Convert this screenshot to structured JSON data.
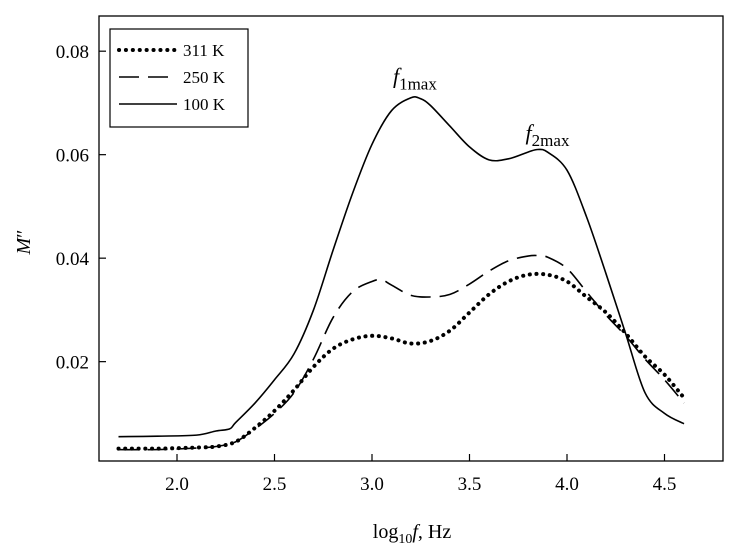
{
  "chart_data": {
    "type": "line",
    "title": "",
    "xlabel": {
      "base": "log",
      "sub": "10",
      "var": "f",
      "rest": ", Hz"
    },
    "ylabel": {
      "main": "M",
      "prime": "″"
    },
    "xlim": [
      1.6,
      4.8
    ],
    "ylim": [
      0.0008,
      0.0868
    ],
    "x_ticks": [
      2.0,
      2.5,
      3.0,
      3.5,
      4.0,
      4.5
    ],
    "x_tick_labels": [
      "2.0",
      "2.5",
      "3.0",
      "3.5",
      "4.0",
      "4.5"
    ],
    "y_ticks": [
      0.02,
      0.04,
      0.06,
      0.08
    ],
    "y_tick_labels": [
      "0.02",
      "0.04",
      "0.06",
      "0.08"
    ],
    "legend_position": "top-left",
    "series": [
      {
        "name": "311 K",
        "style": "dotted",
        "x": [
          1.7,
          1.9,
          2.1,
          2.2,
          2.3,
          2.4,
          2.5,
          2.6,
          2.7,
          2.8,
          2.9,
          3.0,
          3.1,
          3.2,
          3.3,
          3.4,
          3.5,
          3.6,
          3.7,
          3.8,
          3.9,
          4.0,
          4.1,
          4.2,
          4.3,
          4.4,
          4.5,
          4.6
        ],
        "y": [
          0.0032,
          0.0032,
          0.0034,
          0.0036,
          0.0045,
          0.0072,
          0.0105,
          0.0145,
          0.019,
          0.0225,
          0.0243,
          0.025,
          0.0245,
          0.0235,
          0.024,
          0.026,
          0.0295,
          0.033,
          0.0355,
          0.0368,
          0.0368,
          0.0355,
          0.0325,
          0.0295,
          0.0255,
          0.021,
          0.0175,
          0.013
        ]
      },
      {
        "name": "250 K",
        "style": "dashed",
        "x": [
          1.7,
          1.9,
          2.1,
          2.2,
          2.3,
          2.4,
          2.5,
          2.6,
          2.7,
          2.8,
          2.9,
          3.0,
          3.05,
          3.1,
          3.2,
          3.3,
          3.4,
          3.5,
          3.6,
          3.7,
          3.8,
          3.85,
          3.9,
          4.0,
          4.1,
          4.2,
          4.3,
          4.4,
          4.5,
          4.6
        ],
        "y": [
          0.003,
          0.003,
          0.0033,
          0.0036,
          0.0045,
          0.007,
          0.01,
          0.014,
          0.0205,
          0.0285,
          0.0335,
          0.0355,
          0.0358,
          0.0348,
          0.0328,
          0.0325,
          0.033,
          0.035,
          0.0375,
          0.0395,
          0.0404,
          0.0405,
          0.0402,
          0.038,
          0.0335,
          0.029,
          0.025,
          0.0205,
          0.0165,
          0.012
        ]
      },
      {
        "name": "100 K",
        "style": "solid",
        "x": [
          1.7,
          1.9,
          2.1,
          2.2,
          2.27,
          2.3,
          2.4,
          2.5,
          2.6,
          2.7,
          2.8,
          2.9,
          3.0,
          3.1,
          3.2,
          3.25,
          3.3,
          3.4,
          3.5,
          3.6,
          3.7,
          3.8,
          3.85,
          3.9,
          4.0,
          4.1,
          4.2,
          4.3,
          4.4,
          4.5,
          4.6
        ],
        "y": [
          0.0055,
          0.0056,
          0.0058,
          0.0066,
          0.007,
          0.0082,
          0.012,
          0.0165,
          0.0215,
          0.03,
          0.0415,
          0.0525,
          0.062,
          0.0685,
          0.071,
          0.0708,
          0.0695,
          0.0655,
          0.0615,
          0.059,
          0.0592,
          0.0605,
          0.061,
          0.0605,
          0.057,
          0.048,
          0.037,
          0.0255,
          0.014,
          0.01,
          0.008
        ]
      }
    ],
    "annotations": [
      {
        "id": "f1max",
        "var": "f",
        "sub": "1max",
        "x": 3.22,
        "y": 0.0738
      },
      {
        "id": "f2max",
        "var": "f",
        "sub": "2max",
        "x": 3.9,
        "y": 0.0628
      }
    ]
  }
}
